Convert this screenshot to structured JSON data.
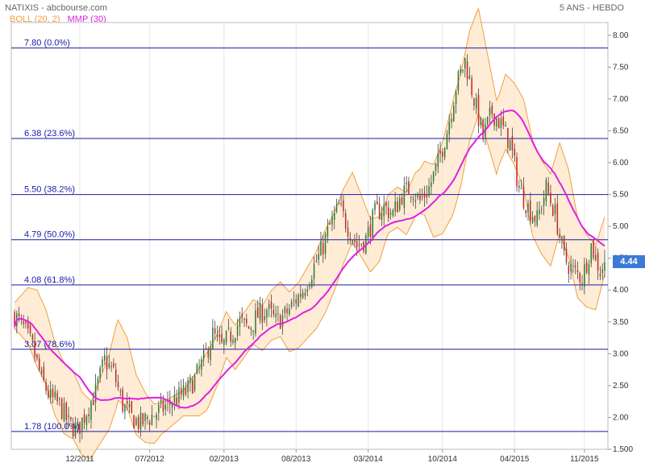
{
  "header": {
    "title": "NATIXIS - abcbourse.com",
    "period": "5 ANS - HEBDO"
  },
  "legend": {
    "boll": "BOLL (20, 2)",
    "mmp": "MMP (30)",
    "boll_color": "#f0a040",
    "mmp_color": "#e020e0"
  },
  "last_price": "4.44",
  "chart_data": {
    "type": "candlestick",
    "y_ticks": [
      "1.500",
      "2.00",
      "2.50",
      "3.00",
      "3.50",
      "4.00",
      "4.50",
      "5.00",
      "5.50",
      "6.00",
      "6.50",
      "7.00",
      "7.50",
      "8.00"
    ],
    "ylim": [
      1.5,
      8.2
    ],
    "x_ticks": [
      "12/2011",
      "07/2012",
      "02/2013",
      "08/2013",
      "03/2014",
      "10/2014",
      "04/2015",
      "11/2015"
    ],
    "fibonacci": [
      {
        "label": "7.80  (0.0%)",
        "value": 7.8
      },
      {
        "label": "6.38  (23.6%)",
        "value": 6.38
      },
      {
        "label": "5.50  (38.2%)",
        "value": 5.5
      },
      {
        "label": "4.79  (50.0%)",
        "value": 4.79
      },
      {
        "label": "4.08  (61.8%)",
        "value": 4.08
      },
      {
        "label": "3.07  (78.6%)",
        "value": 3.07
      },
      {
        "label": "1.78  (100.0%)",
        "value": 1.78
      }
    ],
    "close_keypoints": [
      [
        0,
        3.6
      ],
      [
        4,
        3.4
      ],
      [
        8,
        3.1
      ],
      [
        12,
        2.6
      ],
      [
        16,
        2.3
      ],
      [
        20,
        2.2
      ],
      [
        24,
        1.9
      ],
      [
        28,
        1.8
      ],
      [
        32,
        2.1
      ],
      [
        36,
        2.4
      ],
      [
        40,
        2.9
      ],
      [
        44,
        2.7
      ],
      [
        48,
        2.2
      ],
      [
        52,
        2.0
      ],
      [
        56,
        1.9
      ],
      [
        60,
        2.0
      ],
      [
        64,
        2.1
      ],
      [
        68,
        2.2
      ],
      [
        72,
        2.3
      ],
      [
        76,
        2.4
      ],
      [
        80,
        2.6
      ],
      [
        84,
        2.9
      ],
      [
        88,
        3.3
      ],
      [
        92,
        3.1
      ],
      [
        96,
        3.3
      ],
      [
        100,
        3.5
      ],
      [
        104,
        3.4
      ],
      [
        108,
        3.6
      ],
      [
        112,
        3.7
      ],
      [
        116,
        3.5
      ],
      [
        120,
        3.6
      ],
      [
        124,
        3.8
      ],
      [
        128,
        4.0
      ],
      [
        132,
        4.3
      ],
      [
        136,
        4.6
      ],
      [
        140,
        5.0
      ],
      [
        144,
        5.3
      ],
      [
        148,
        5.0
      ],
      [
        152,
        4.7
      ],
      [
        156,
        4.8
      ],
      [
        160,
        5.2
      ],
      [
        164,
        5.3
      ],
      [
        168,
        5.2
      ],
      [
        172,
        5.5
      ],
      [
        176,
        5.6
      ],
      [
        180,
        5.4
      ],
      [
        184,
        5.6
      ],
      [
        188,
        6.0
      ],
      [
        192,
        6.5
      ],
      [
        196,
        7.2
      ],
      [
        200,
        7.6
      ],
      [
        204,
        7.0
      ],
      [
        208,
        6.4
      ],
      [
        212,
        6.8
      ],
      [
        216,
        6.6
      ],
      [
        220,
        6.3
      ],
      [
        224,
        5.6
      ],
      [
        228,
        5.3
      ],
      [
        232,
        5.1
      ],
      [
        236,
        5.6
      ],
      [
        240,
        5.2
      ],
      [
        244,
        4.5
      ],
      [
        248,
        4.3
      ],
      [
        252,
        4.2
      ],
      [
        256,
        4.7
      ],
      [
        260,
        4.3
      ],
      [
        262,
        4.44
      ]
    ],
    "bollinger_width_keypoints": [
      [
        0,
        0.2
      ],
      [
        10,
        0.6
      ],
      [
        24,
        0.55
      ],
      [
        35,
        0.45
      ],
      [
        45,
        0.65
      ],
      [
        55,
        0.45
      ],
      [
        65,
        0.25
      ],
      [
        75,
        0.2
      ],
      [
        85,
        0.45
      ],
      [
        95,
        0.35
      ],
      [
        110,
        0.35
      ],
      [
        125,
        0.5
      ],
      [
        138,
        0.65
      ],
      [
        150,
        0.55
      ],
      [
        165,
        0.3
      ],
      [
        180,
        0.35
      ],
      [
        195,
        0.9
      ],
      [
        205,
        0.85
      ],
      [
        215,
        0.55
      ],
      [
        230,
        0.75
      ],
      [
        245,
        0.7
      ],
      [
        262,
        0.45
      ]
    ],
    "mmp_period": 30,
    "bars": 263
  }
}
